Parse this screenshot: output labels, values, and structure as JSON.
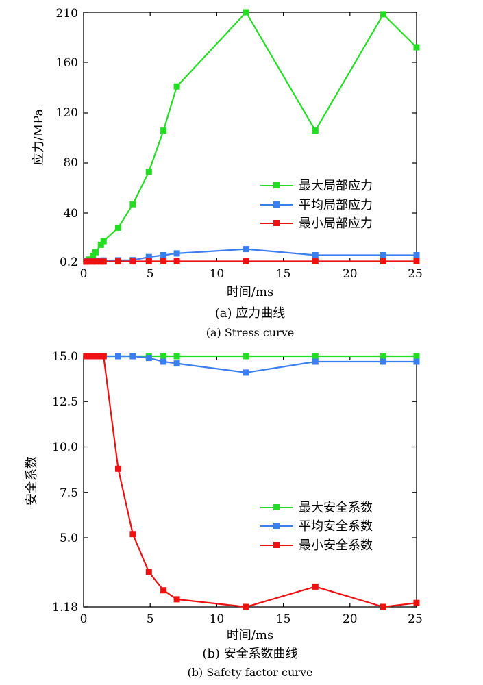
{
  "chart_data": [
    {
      "type": "line",
      "xlabel": "时间/ms",
      "ylabel": "应力/MPa",
      "xlim": [
        0,
        25
      ],
      "ylim": [
        0.2,
        210
      ],
      "xticks": [
        "0",
        "5",
        "10",
        "15",
        "20",
        "25"
      ],
      "yticks": [
        "0.2",
        "40",
        "80",
        "120",
        "160",
        "210"
      ],
      "caption_cn": "(a) 应力曲线",
      "caption_en": "(a) Stress curve",
      "legend_position": "right-middle",
      "grid": false,
      "series": [
        {
          "name": "最大局部应力",
          "color": "#22dd22",
          "x": [
            0.2,
            0.4,
            0.7,
            0.9,
            1.3,
            1.5,
            2.6,
            3.7,
            4.9,
            6.0,
            7.0,
            12.2,
            17.4,
            22.5,
            25.0
          ],
          "y": [
            0.2,
            2,
            5,
            8,
            14,
            17,
            28,
            47,
            73,
            106,
            141,
            210,
            106,
            208,
            175
          ]
        },
        {
          "name": "平均局部应力",
          "color": "#3a7ff0",
          "x": [
            0.2,
            0.4,
            0.7,
            0.9,
            1.3,
            1.5,
            2.6,
            3.7,
            4.9,
            6.0,
            7.0,
            12.2,
            17.4,
            22.5,
            25.0
          ],
          "y": [
            0.5,
            0.7,
            0.9,
            1.0,
            1.1,
            1.2,
            1.4,
            1.5,
            4.0,
            5.5,
            7.0,
            10.5,
            5.5,
            5.5,
            5.5
          ]
        },
        {
          "name": "最小局部应力",
          "color": "#ee1111",
          "x": [
            0.2,
            0.4,
            0.7,
            0.9,
            1.3,
            1.5,
            2.6,
            3.7,
            4.9,
            6.0,
            7.0,
            12.2,
            17.4,
            22.5,
            25.0
          ],
          "y": [
            0.2,
            0.3,
            0.3,
            0.3,
            0.3,
            0.3,
            0.4,
            0.4,
            0.5,
            0.5,
            0.5,
            0.5,
            0.5,
            0.5,
            0.5
          ]
        }
      ]
    },
    {
      "type": "line",
      "xlabel": "时间/ms",
      "ylabel": "安全系数",
      "xlim": [
        0,
        25
      ],
      "ylim": [
        1.18,
        15.0
      ],
      "xticks": [
        "0",
        "5",
        "10",
        "15",
        "20",
        "25"
      ],
      "yticks": [
        "1.18",
        "5.0",
        "7.5",
        "10.0",
        "12.5",
        "15.0"
      ],
      "caption_cn": "(b) 安全系数曲线",
      "caption_en": "(b) Safety factor curve",
      "legend_position": "right-middle",
      "grid": false,
      "series": [
        {
          "name": "最大安全系数",
          "color": "#22dd22",
          "x": [
            0.2,
            0.4,
            0.7,
            0.9,
            1.3,
            1.5,
            2.6,
            3.7,
            4.9,
            6.0,
            7.0,
            12.2,
            17.4,
            22.5,
            25.0
          ],
          "y": [
            15.0,
            15.0,
            15.0,
            15.0,
            15.0,
            15.0,
            15.0,
            15.0,
            15.0,
            15.0,
            15.0,
            15.0,
            15.0,
            15.0,
            15.0
          ]
        },
        {
          "name": "平均安全系数",
          "color": "#3a7ff0",
          "x": [
            0.2,
            0.4,
            0.7,
            0.9,
            1.3,
            1.5,
            2.6,
            3.7,
            4.9,
            6.0,
            7.0,
            12.2,
            17.4,
            22.5,
            25.0
          ],
          "y": [
            15.0,
            15.0,
            15.0,
            15.0,
            15.0,
            15.0,
            15.0,
            15.0,
            14.9,
            14.7,
            14.6,
            14.1,
            14.7,
            14.7,
            14.7
          ]
        },
        {
          "name": "最小安全系数",
          "color": "#ee1111",
          "x": [
            0.2,
            0.4,
            0.7,
            0.9,
            1.3,
            1.5,
            2.6,
            3.7,
            4.9,
            6.0,
            7.0,
            12.2,
            17.4,
            22.5,
            25.0
          ],
          "y": [
            15.0,
            15.0,
            15.0,
            15.0,
            15.0,
            15.0,
            8.8,
            5.2,
            3.1,
            2.1,
            1.6,
            1.18,
            2.3,
            1.18,
            1.4
          ]
        }
      ]
    }
  ]
}
